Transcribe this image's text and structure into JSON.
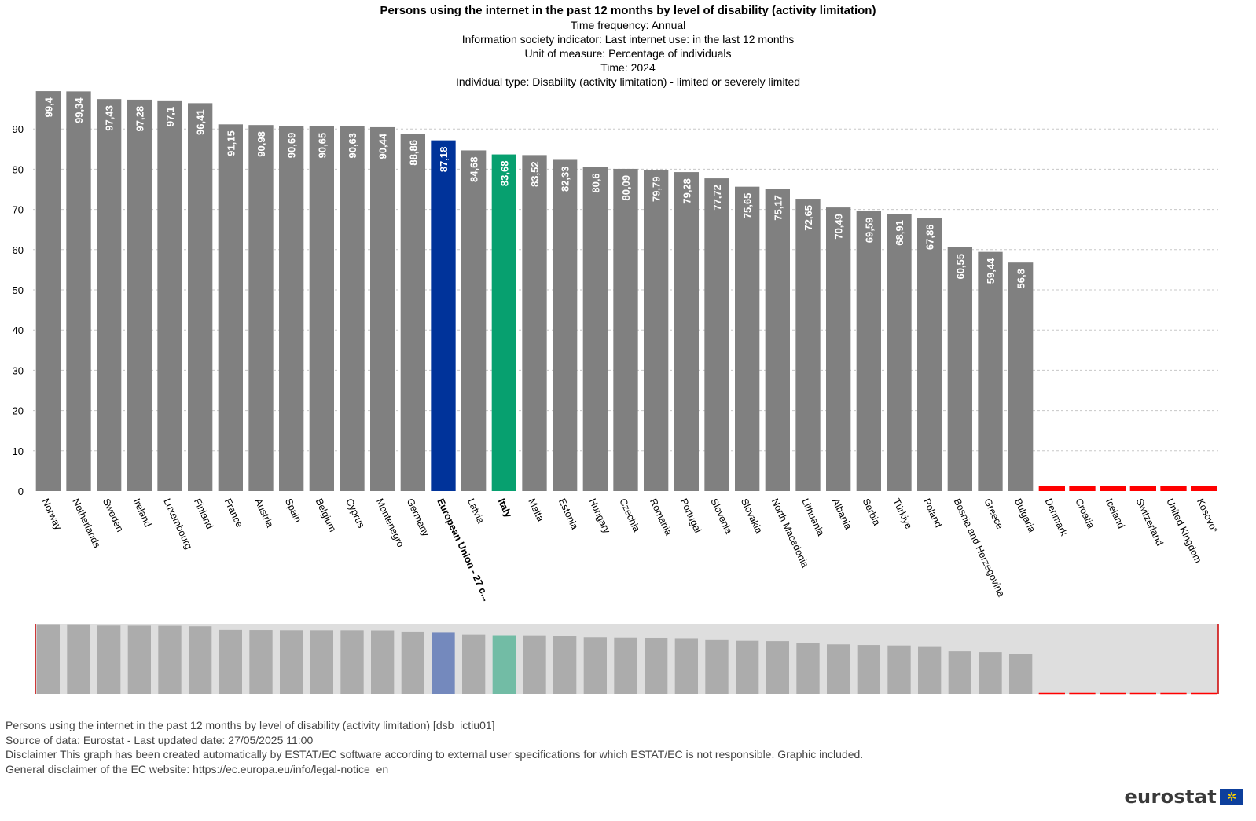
{
  "header": {
    "title": "Persons using the internet in the past 12 months by level of disability (activity limitation)",
    "lines": [
      "Time frequency:  Annual",
      "Information society indicator:  Last internet use: in the last 12 months",
      "Unit of measure:  Percentage of individuals",
      "Time:  2024",
      "Individual type:  Disability (activity limitation) - limited or severely limited"
    ]
  },
  "footer": {
    "lines": [
      "Persons using the internet in the past 12 months by level of disability (activity limitation) [dsb_ictiu01]",
      "Source of data: Eurostat - Last updated date: 27/05/2025 11:00",
      "Disclaimer This graph has been created automatically by ESTAT/EC software according to external user specifications for which ESTAT/EC is not responsible. Graphic included.",
      "General disclaimer of the EC website: https://ec.europa.eu/info/legal-notice_en"
    ]
  },
  "logo": {
    "text": "eurostat",
    "flag_icon": "eu-flag-icon"
  },
  "colors": {
    "default_bar": "#808080",
    "eu_bar": "#00339a",
    "italy_bar": "#07a06f",
    "missing_bar": "#ff0000",
    "overview_bg": "#dedede",
    "overview_bar": "#acacac",
    "overview_eu_bar": "#7489bd",
    "overview_italy_bar": "#72bca5"
  },
  "chart_data": {
    "type": "bar",
    "ylim": [
      0,
      100
    ],
    "yticks": [
      0,
      10,
      20,
      30,
      40,
      50,
      60,
      70,
      80,
      90
    ],
    "grid": true,
    "categories": [
      "Norway",
      "Netherlands",
      "Sweden",
      "Ireland",
      "Luxembourg",
      "Finland",
      "France",
      "Austria",
      "Spain",
      "Belgium",
      "Cyprus",
      "Montenegro",
      "Germany",
      "European Union - 27 c...",
      "Latvia",
      "Italy",
      "Malta",
      "Estonia",
      "Hungary",
      "Czechia",
      "Romania",
      "Portugal",
      "Slovenia",
      "Slovakia",
      "North Macedonia",
      "Lithuania",
      "Albania",
      "Serbia",
      "Türkiye",
      "Poland",
      "Bosnia and Herzegovina",
      "Greece",
      "Bulgaria",
      "Denmark",
      "Croatia",
      "Iceland",
      "Switzerland",
      "United Kingdom",
      "Kosovo*"
    ],
    "values": [
      99.4,
      99.34,
      97.43,
      97.28,
      97.1,
      96.41,
      91.15,
      90.98,
      90.69,
      90.65,
      90.63,
      90.44,
      88.86,
      87.18,
      84.68,
      83.68,
      83.52,
      82.33,
      80.6,
      80.09,
      79.79,
      79.28,
      77.72,
      75.65,
      75.17,
      72.65,
      70.49,
      69.59,
      68.91,
      67.86,
      60.55,
      59.44,
      56.8,
      null,
      null,
      null,
      null,
      null,
      null
    ],
    "value_labels": [
      "99,4",
      "99,34",
      "97,43",
      "97,28",
      "97,1",
      "96,41",
      "91,15",
      "90,98",
      "90,69",
      "90,65",
      "90,63",
      "90,44",
      "88,86",
      "87,18",
      "84,68",
      "83,68",
      "83,52",
      "82,33",
      "80,6",
      "80,09",
      "79,79",
      "79,28",
      "77,72",
      "75,65",
      "75,17",
      "72,65",
      "70,49",
      "69,59",
      "68,91",
      "67,86",
      "60,55",
      "59,44",
      "56,8",
      "",
      "",
      "",
      "",
      "",
      ""
    ],
    "highlighted": [
      "European Union - 27 c...",
      "Italy"
    ]
  }
}
